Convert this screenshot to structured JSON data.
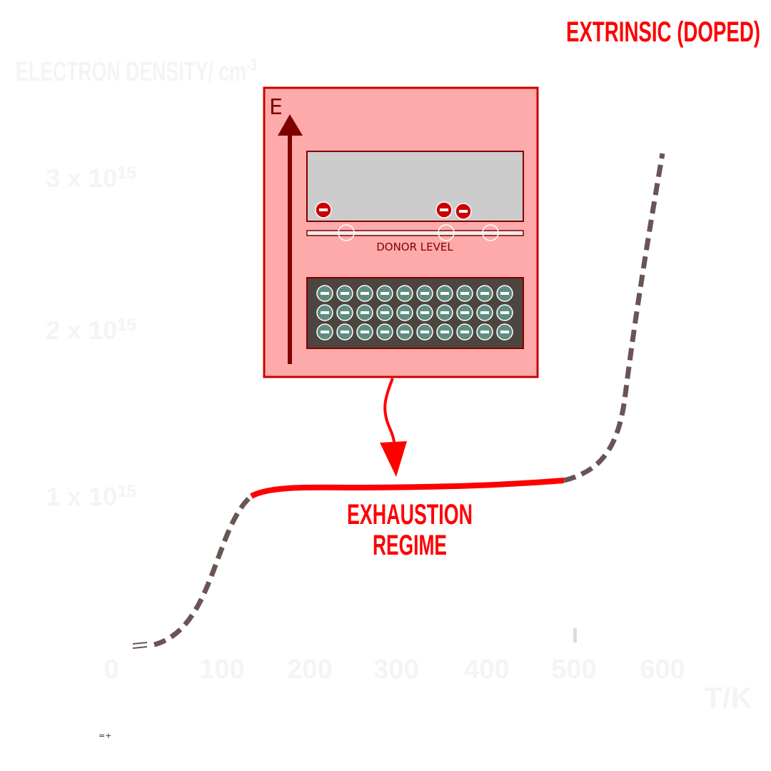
{
  "title": "EXTRINSIC (DOPED)",
  "y_axis": {
    "label_prefix": "ELECTRON DENSITY/ cm",
    "label_exp": "-3",
    "ticks": [
      {
        "mantissa": "3 x 10",
        "exp": "15"
      },
      {
        "mantissa": "2 x 10",
        "exp": "15"
      },
      {
        "mantissa": "1 x 10",
        "exp": "15"
      }
    ]
  },
  "x_axis": {
    "label": "T/K",
    "ticks": [
      "0",
      "100",
      "200",
      "300",
      "400",
      "500",
      "600"
    ]
  },
  "band_diagram": {
    "energy_label": "E",
    "donor_label": "DONOR LEVEL",
    "electron_symbol": "−"
  },
  "regime_label": {
    "line1": "EXHAUSTION",
    "line2": "REGIME"
  },
  "footnote": "=+",
  "colors": {
    "title_red": "#ff0000",
    "box_fill": "#ffaaaa",
    "box_border": "#cc0000",
    "conduction_band": "#cccccc",
    "valence_band": "#4d4540",
    "dark_arrow": "#800000",
    "dashed_curve": "#6b5454",
    "electron_green": "#5f8c7f"
  }
}
